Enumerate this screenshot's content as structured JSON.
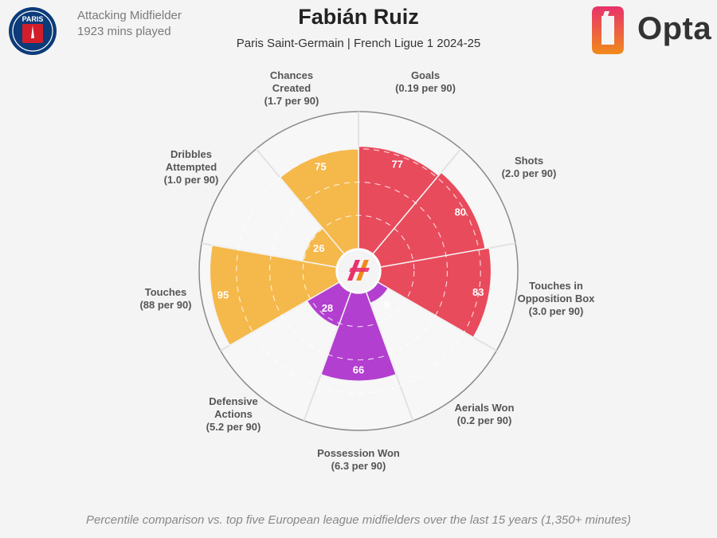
{
  "player": {
    "name": "Fabián Ruiz",
    "position": "Attacking Midfielder",
    "minutes": "1923 mins played",
    "subtitle": "Paris Saint-Germain | French Ligue 1 2024-25"
  },
  "badge": {
    "text": "PARIS",
    "subtext": "SAINT-GERMAIN",
    "color": "#0b3b79",
    "accent": "#d21e2b"
  },
  "brand": {
    "name": "Opta",
    "color_top": "#e8326b",
    "color_bottom": "#f08a1c"
  },
  "footnote": "Percentile comparison vs. top five European league midfielders over the last 15 years (1,350+ minutes)",
  "chart_data": {
    "type": "polar-bar",
    "scale_max": 100,
    "grid_rings": [
      25,
      50,
      75
    ],
    "categories": [
      {
        "name": "Goals",
        "sub": "(0.19 per 90)",
        "value": 77,
        "color": "#e84b5c"
      },
      {
        "name": "Shots",
        "sub": "(2.0 per 90)",
        "value": 80,
        "color": "#e84b5c"
      },
      {
        "name": "Touches in Opposition Box",
        "sub": "(3.0 per 90)",
        "value": 83,
        "color": "#e84b5c"
      },
      {
        "name": "Aerials Won",
        "sub": "(0.2 per 90)",
        "value": 9,
        "color": "#b23fcf"
      },
      {
        "name": "Possession Won",
        "sub": "(6.3 per 90)",
        "value": 66,
        "color": "#b23fcf"
      },
      {
        "name": "Defensive Actions",
        "sub": "(5.2 per 90)",
        "value": 28,
        "color": "#b23fcf"
      },
      {
        "name": "Touches",
        "sub": "(88 per 90)",
        "value": 95,
        "color": "#f5b84a"
      },
      {
        "name": "Dribbles Attempted",
        "sub": "(1.0 per 90)",
        "value": 26,
        "color": "#f5b84a"
      },
      {
        "name": "Chances Created",
        "sub": "(1.7 per 90)",
        "value": 75,
        "color": "#f5b84a"
      }
    ]
  }
}
